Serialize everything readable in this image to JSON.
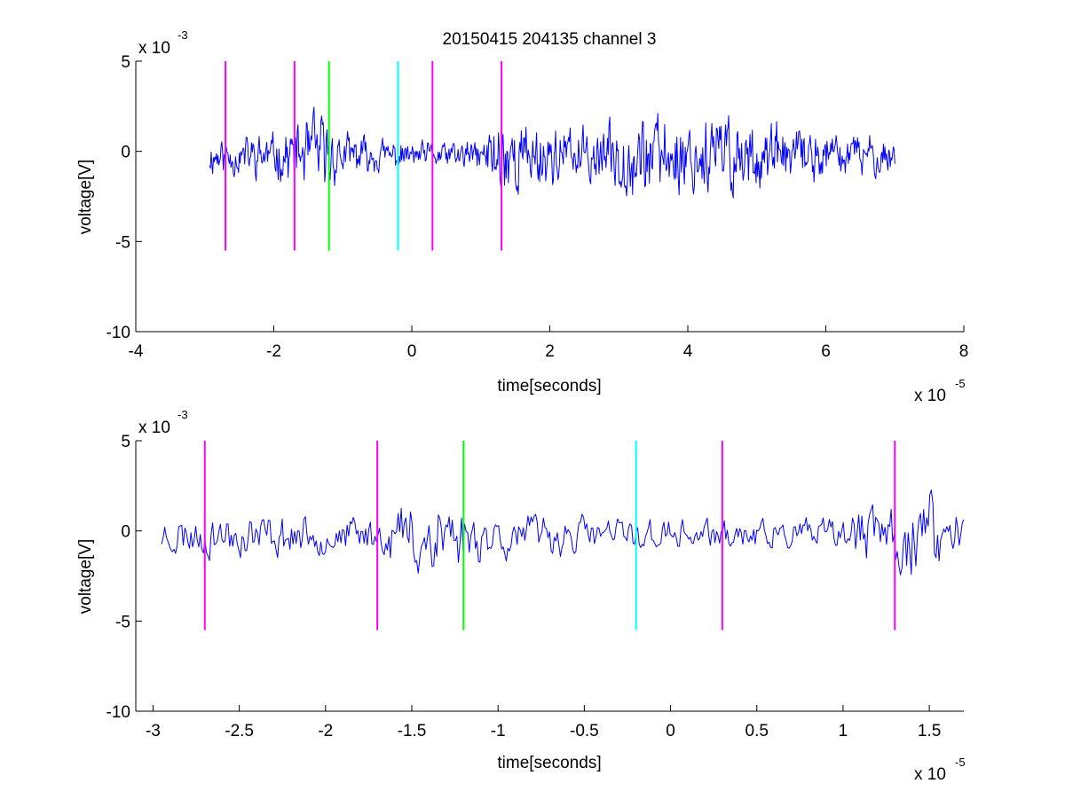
{
  "chart_data": [
    {
      "type": "line",
      "title": "20150415 204135 channel 3",
      "xlabel": "time[seconds]",
      "ylabel": "voltage[V]",
      "x_exponent_label": "x 10",
      "x_exponent": "-5",
      "y_exponent_label": "x 10",
      "y_exponent": "-3",
      "xlim": [
        -4,
        8
      ],
      "ylim": [
        -10,
        5
      ],
      "x_ticks": [
        -4,
        -2,
        0,
        2,
        4,
        6,
        8
      ],
      "x_tick_labels": [
        "-4",
        "-2",
        "0",
        "2",
        "4",
        "6",
        "8"
      ],
      "y_ticks": [
        -10,
        -5,
        0,
        5
      ],
      "y_tick_labels": [
        "-10",
        "-5",
        "0",
        "5"
      ],
      "grid": false,
      "trace_color": "#0000ff",
      "series": [
        {
          "x_start": -2.93,
          "x_end": 7.0,
          "samples": 900,
          "seed": 11,
          "envelope": [
            [
              -2.93,
              1.4
            ],
            [
              -2.0,
              1.5
            ],
            [
              -1.6,
              2.4
            ],
            [
              -1.4,
              3.2
            ],
            [
              -1.0,
              1.5
            ],
            [
              0.0,
              0.9
            ],
            [
              1.0,
              1.1
            ],
            [
              1.3,
              3.4
            ],
            [
              1.6,
              2.4
            ],
            [
              2.5,
              1.8
            ],
            [
              3.2,
              2.8
            ],
            [
              4.5,
              3.0
            ],
            [
              5.5,
              1.8
            ],
            [
              6.2,
              1.6
            ],
            [
              7.0,
              1.3
            ]
          ]
        }
      ],
      "markers": [
        {
          "x": -2.7,
          "color": "#ff00ff",
          "y_top": 5,
          "y_bottom": -5.5
        },
        {
          "x": -1.7,
          "color": "#ff00ff",
          "y_top": 5,
          "y_bottom": -5.5
        },
        {
          "x": -1.2,
          "color": "#00ff00",
          "y_top": 5,
          "y_bottom": -5.5
        },
        {
          "x": -0.2,
          "color": "#00ffff",
          "y_top": 5,
          "y_bottom": -5.5
        },
        {
          "x": 0.3,
          "color": "#ff00ff",
          "y_top": 5,
          "y_bottom": -5.5
        },
        {
          "x": 1.3,
          "color": "#ff00ff",
          "y_top": 5,
          "y_bottom": -5.5
        }
      ]
    },
    {
      "type": "line",
      "title": "",
      "xlabel": "time[seconds]",
      "ylabel": "voltage[V]",
      "x_exponent_label": "x 10",
      "x_exponent": "-5",
      "y_exponent_label": "x 10",
      "y_exponent": "-3",
      "xlim": [
        -3.1,
        1.7
      ],
      "ylim": [
        -10,
        5
      ],
      "x_ticks": [
        -3,
        -2.5,
        -2,
        -1.5,
        -1,
        -0.5,
        0,
        0.5,
        1,
        1.5
      ],
      "x_tick_labels": [
        "-3",
        "-2.5",
        "-2",
        "-1.5",
        "-1",
        "-0.5",
        "0",
        "0.5",
        "1",
        "1.5"
      ],
      "y_ticks": [
        -10,
        -5,
        0,
        5
      ],
      "y_tick_labels": [
        "-10",
        "-5",
        "0",
        "5"
      ],
      "grid": false,
      "trace_color": "#0000ff",
      "series": [
        {
          "x_start": -2.95,
          "x_end": 1.7,
          "samples": 520,
          "seed": 23,
          "envelope": [
            [
              -2.95,
              1.4
            ],
            [
              -2.5,
              1.6
            ],
            [
              -2.0,
              1.3
            ],
            [
              -1.7,
              1.2
            ],
            [
              -1.55,
              2.6
            ],
            [
              -1.35,
              3.8
            ],
            [
              -1.2,
              2.0
            ],
            [
              -0.9,
              1.5
            ],
            [
              -0.5,
              1.4
            ],
            [
              0.0,
              1.1
            ],
            [
              0.5,
              1.0
            ],
            [
              1.0,
              1.2
            ],
            [
              1.25,
              2.6
            ],
            [
              1.45,
              3.6
            ],
            [
              1.7,
              2.0
            ]
          ]
        }
      ],
      "markers": [
        {
          "x": -2.7,
          "color": "#ff00ff",
          "y_top": 5,
          "y_bottom": -5.5
        },
        {
          "x": -1.7,
          "color": "#ff00ff",
          "y_top": 5,
          "y_bottom": -5.5
        },
        {
          "x": -1.2,
          "color": "#00ff00",
          "y_top": 5,
          "y_bottom": -5.5
        },
        {
          "x": -0.2,
          "color": "#00ffff",
          "y_top": 5,
          "y_bottom": -5.5
        },
        {
          "x": 0.3,
          "color": "#ff00ff",
          "y_top": 5,
          "y_bottom": -5.5
        },
        {
          "x": 1.3,
          "color": "#ff00ff",
          "y_top": 5,
          "y_bottom": -5.5
        }
      ]
    }
  ]
}
